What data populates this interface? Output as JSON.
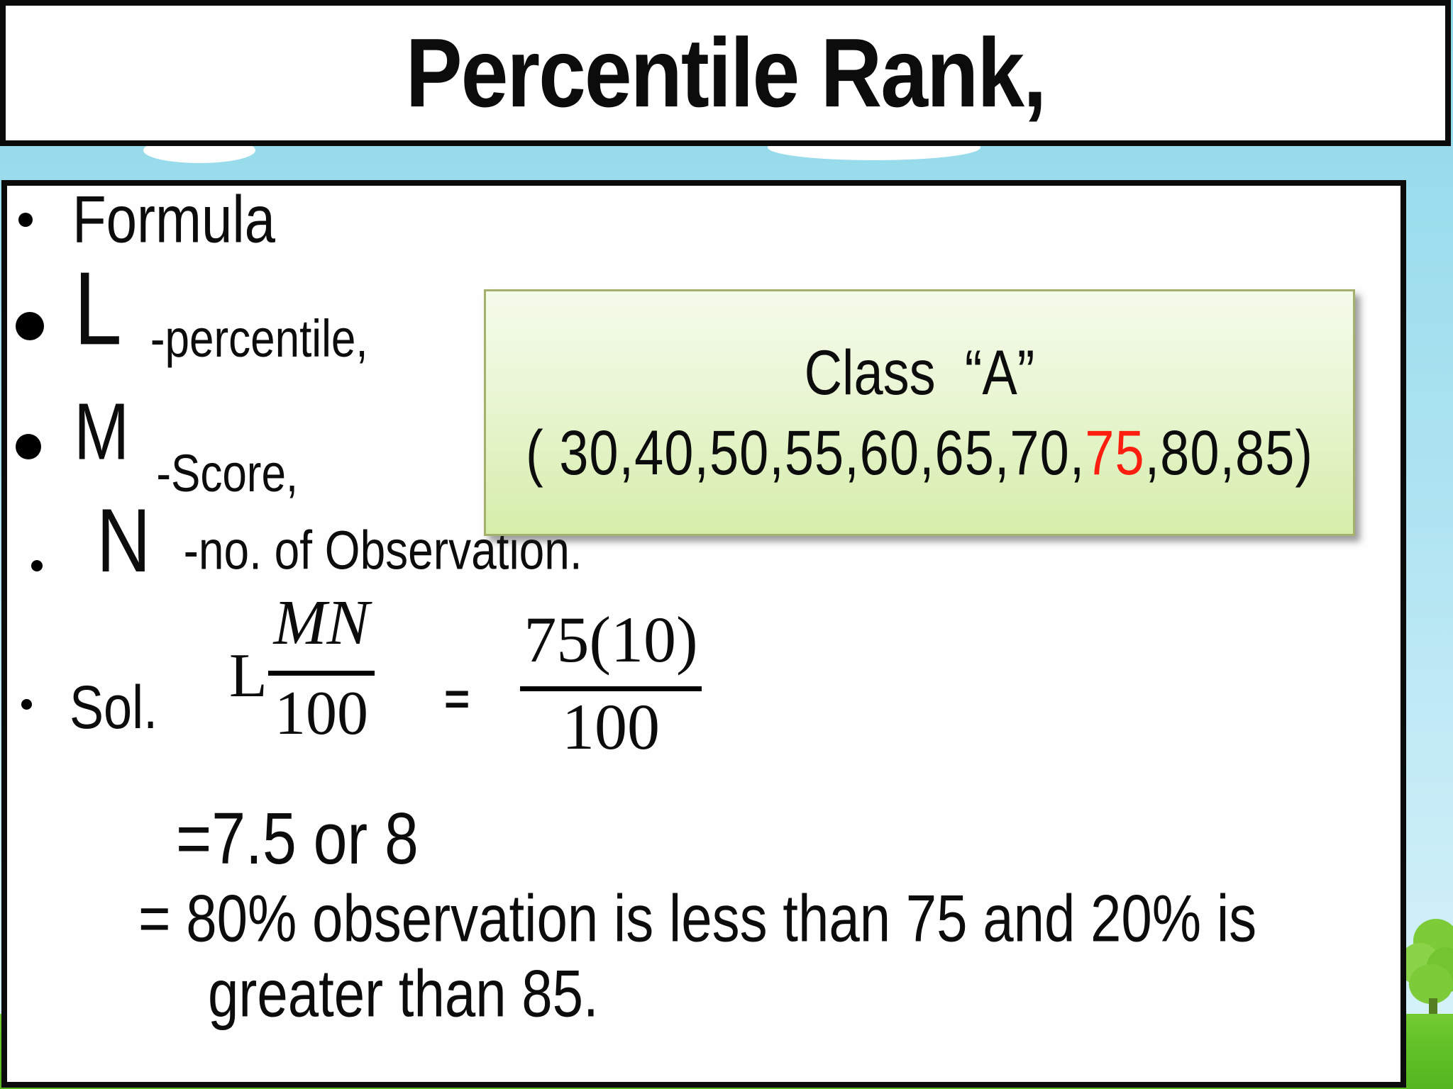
{
  "title": "Percentile Rank,",
  "bullets": {
    "formula_label": "Formula",
    "terms": [
      {
        "letter": "L",
        "desc": "-percentile,"
      },
      {
        "letter": "M",
        "desc": "-Score,"
      },
      {
        "letter": "N",
        "desc": "-no. of Observation."
      }
    ]
  },
  "class_box": {
    "heading": "Class  “A”",
    "values_before": "( 30,40,50,55,60,65,70,",
    "value_highlight": "75",
    "values_after": ",80,85)"
  },
  "solution": {
    "bullet_label": "Sol.",
    "coefficient": "L",
    "lhs_numerator": "MN",
    "lhs_denominator": "100",
    "equals_sign": "=",
    "rhs_numerator": "75(10)",
    "rhs_denominator": "100",
    "result": "=7.5 or 8",
    "interpretation_line1": "= 80% observation is less than 75 and 20% is",
    "interpretation_line2": "greater than 85."
  },
  "colors": {
    "highlight_red": "#fe1e10",
    "sky_blue": "#8dd7e7",
    "grass_green": "#62c228",
    "tree_green": "#7ecb39",
    "class_box_green_top": "#f4fbea",
    "class_box_green_bottom": "#d6edaa",
    "class_box_border": "#a4b06b",
    "panel_border_black": "#0b0b0b"
  }
}
